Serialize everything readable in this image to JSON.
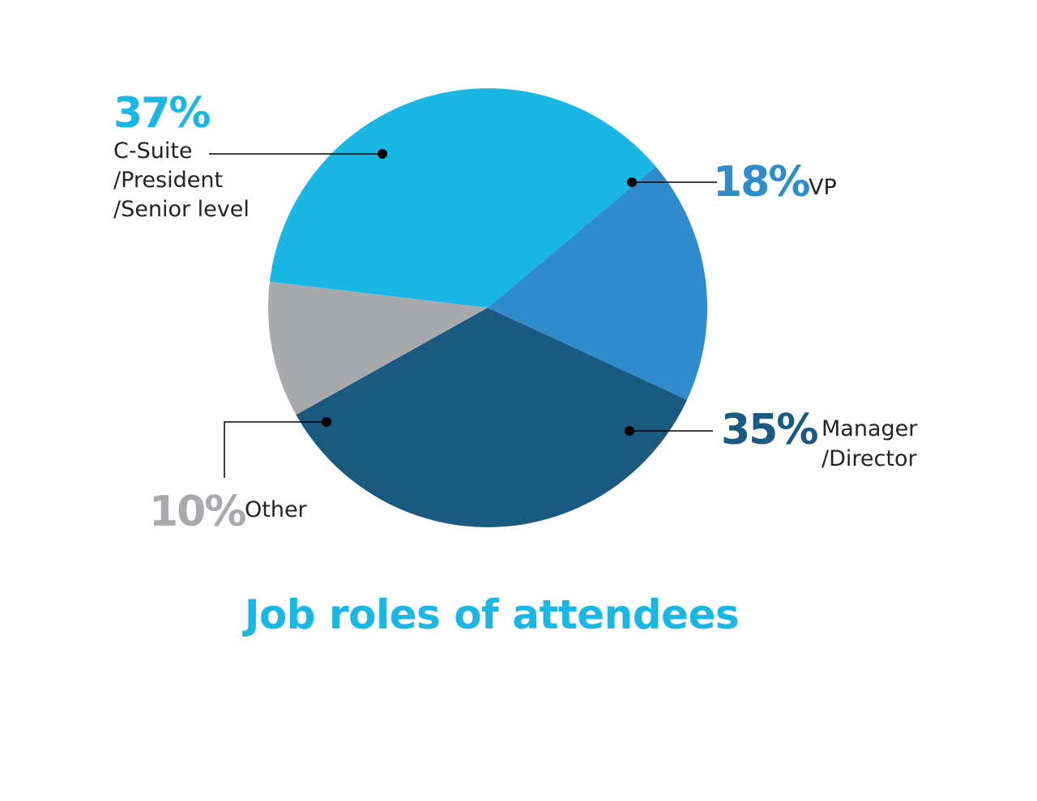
{
  "chart_data": {
    "type": "pie",
    "title": "Job roles of attendees",
    "start_angle_deg": -40,
    "direction": "counterclockwise",
    "slices": [
      {
        "label_lines": [
          "C-Suite",
          "/President",
          "/Senior level"
        ],
        "value": 37,
        "display": "37%",
        "color": "#19b8e4"
      },
      {
        "label_lines": [
          "Other"
        ],
        "value": 10,
        "display": "10%",
        "color": "#a7a9ac"
      },
      {
        "label_lines": [
          "Manager",
          "/Director"
        ],
        "value": 35,
        "display": "35%",
        "color": "#1b5a80"
      },
      {
        "label_lines": [
          "VP"
        ],
        "value": 18,
        "display": "18%",
        "color": "#2f8ccc"
      }
    ],
    "title_color": "#19b8e4",
    "leader_color": "#000000"
  }
}
